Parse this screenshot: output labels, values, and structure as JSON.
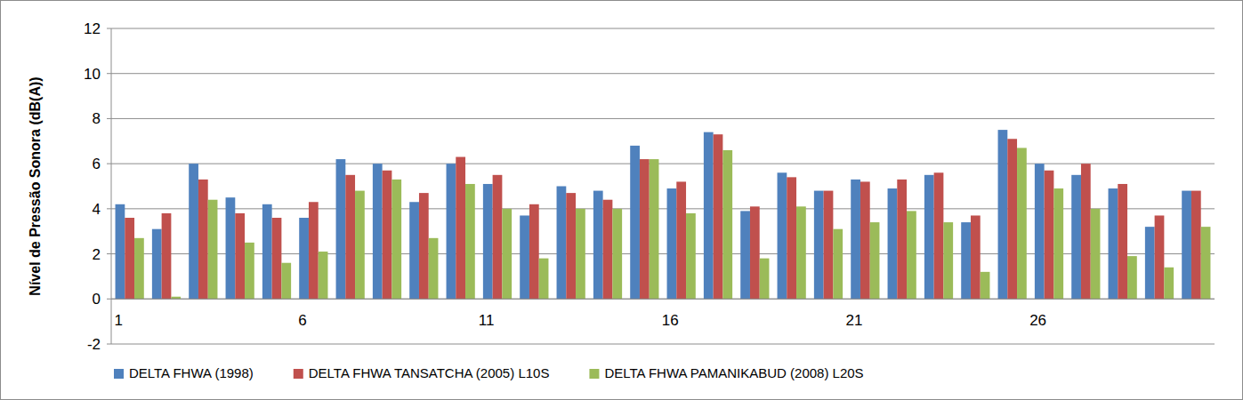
{
  "chart_data": {
    "type": "bar",
    "y_label": "Nível de Pressão Sonora (dB(A))",
    "categories": [
      1,
      null,
      null,
      null,
      null,
      6,
      null,
      null,
      null,
      null,
      11,
      null,
      null,
      null,
      null,
      16,
      null,
      null,
      null,
      null,
      21,
      null,
      null,
      null,
      null,
      26,
      null,
      null,
      null,
      null
    ],
    "series": [
      {
        "name": "DELTA FHWA (1998)",
        "color": "#4f81bd",
        "values": [
          4.2,
          3.1,
          6.0,
          4.5,
          4.2,
          3.6,
          6.2,
          6.0,
          4.3,
          6.0,
          5.1,
          3.7,
          5.0,
          4.8,
          6.8,
          4.9,
          7.4,
          3.9,
          5.6,
          4.8,
          5.3,
          4.9,
          5.5,
          3.4,
          7.5,
          6.0,
          5.5,
          4.9,
          3.2,
          4.8
        ]
      },
      {
        "name": "DELTA FHWA TANSATCHA (2005) L10S",
        "color": "#c0504d",
        "values": [
          3.6,
          3.8,
          5.3,
          3.8,
          3.6,
          4.3,
          5.5,
          5.7,
          4.7,
          6.3,
          5.5,
          4.2,
          4.7,
          4.4,
          6.2,
          5.2,
          7.3,
          4.1,
          5.4,
          4.8,
          5.2,
          5.3,
          5.6,
          3.7,
          7.1,
          5.7,
          6.0,
          5.1,
          3.7,
          4.8
        ]
      },
      {
        "name": "DELTA FHWA PAMANIKABUD (2008) L20S",
        "color": "#9bbb59",
        "values": [
          2.7,
          0.1,
          4.4,
          2.5,
          1.6,
          2.1,
          4.8,
          5.3,
          2.7,
          5.1,
          4.0,
          1.8,
          4.0,
          4.0,
          6.2,
          3.8,
          6.6,
          1.8,
          4.1,
          3.1,
          3.4,
          3.9,
          3.4,
          1.2,
          6.7,
          4.9,
          4.0,
          1.9,
          1.4,
          3.2
        ]
      }
    ],
    "ylim": [
      -2,
      12
    ],
    "yticks": [
      -2,
      0,
      2,
      4,
      6,
      8,
      10,
      12
    ],
    "grid": true,
    "legend": "bottom"
  }
}
